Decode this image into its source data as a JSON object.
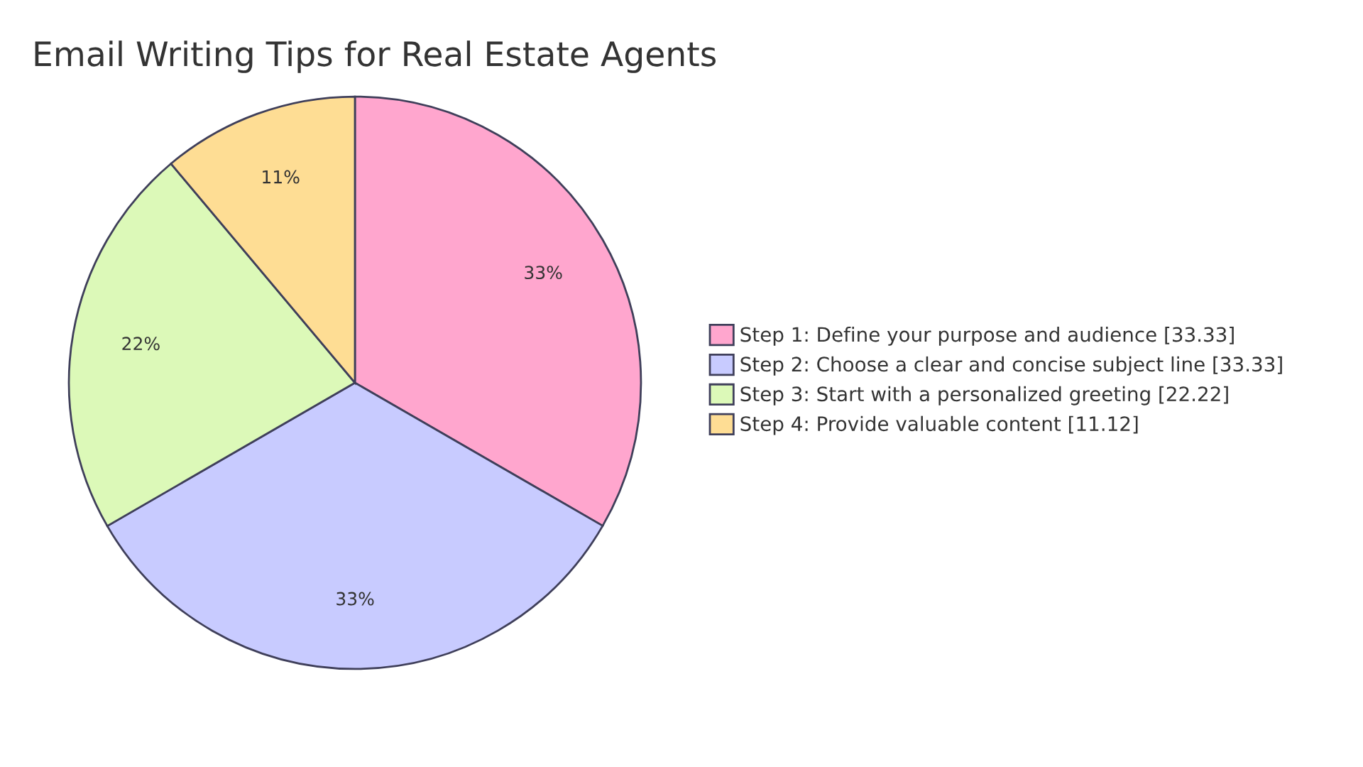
{
  "chart_data": {
    "type": "pie",
    "title": "Email Writing Tips for Real Estate Agents",
    "categories": [
      "Step 1: Define your purpose and audience [33.33]",
      "Step 2: Choose a clear and concise subject line [33.33]",
      "Step 3: Start with a personalized greeting [22.22]",
      "Step 4: Provide valuable content [11.12]"
    ],
    "values": [
      33.33,
      33.33,
      22.22,
      11.12
    ],
    "value_labels": [
      "33%",
      "33%",
      "22%",
      "11%"
    ],
    "colors": [
      "#ffa6ce",
      "#c8cbff",
      "#dcf9b8",
      "#fedd94"
    ],
    "legend": "right"
  }
}
